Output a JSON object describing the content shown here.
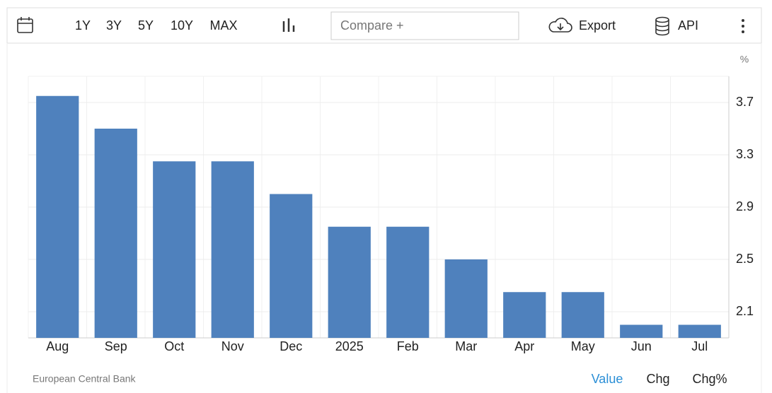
{
  "toolbar": {
    "ranges": [
      "1Y",
      "3Y",
      "5Y",
      "10Y",
      "MAX"
    ],
    "compare": "Compare +",
    "export": "Export",
    "api": "API"
  },
  "source": "European Central Bank",
  "footer_tabs": [
    "Value",
    "Chg",
    "Chg%"
  ],
  "chart_data": {
    "type": "bar",
    "y_unit": "%",
    "categories": [
      "Aug",
      "Sep",
      "Oct",
      "Nov",
      "Dec",
      "2025",
      "Feb",
      "Mar",
      "Apr",
      "May",
      "Jun",
      "Jul"
    ],
    "values": [
      3.75,
      3.5,
      3.25,
      3.25,
      3.0,
      2.75,
      2.75,
      2.5,
      2.25,
      2.25,
      2.0,
      2.0
    ],
    "color": "#4f81bd",
    "ylim": [
      1.9,
      3.9
    ],
    "yticks": [
      2.1,
      2.5,
      2.9,
      3.3,
      3.7
    ],
    "grid": true,
    "y_axis_side": "right"
  }
}
